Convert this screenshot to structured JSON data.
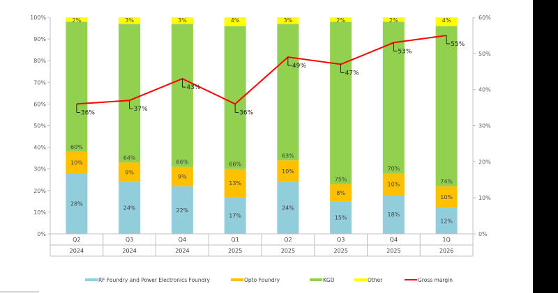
{
  "chart_data": {
    "type": "bar",
    "stacked": true,
    "categories": [
      {
        "quarter": "Q2",
        "year": "2024"
      },
      {
        "quarter": "Q3",
        "year": "2024"
      },
      {
        "quarter": "Q4",
        "year": "2024"
      },
      {
        "quarter": "Q1",
        "year": "2025"
      },
      {
        "quarter": "Q2",
        "year": "2025"
      },
      {
        "quarter": "Q3",
        "year": "2025"
      },
      {
        "quarter": "Q4",
        "year": "2025"
      },
      {
        "quarter": "1Q",
        "year": "2026"
      }
    ],
    "series": [
      {
        "name": "RF Foundry and Power Electronics Foundry",
        "color": "#92CDDC",
        "values": [
          28,
          24,
          22,
          17,
          24,
          15,
          18,
          12
        ]
      },
      {
        "name": "Opto Foundry",
        "color": "#FFC000",
        "values": [
          10,
          9,
          9,
          13,
          10,
          8,
          10,
          10
        ]
      },
      {
        "name": "KGD",
        "color": "#92D050",
        "values": [
          60,
          64,
          66,
          66,
          63,
          75,
          70,
          74
        ]
      },
      {
        "name": "Other",
        "color": "#FFFF00",
        "values": [
          2,
          3,
          3,
          4,
          3,
          2,
          2,
          4
        ]
      }
    ],
    "line": {
      "name": "Gross margin",
      "color": "#FF0000",
      "axis": "right",
      "values": [
        36,
        37,
        43,
        36,
        49,
        47,
        53,
        55
      ]
    },
    "ylim_left": [
      0,
      100
    ],
    "yticks_left": [
      "0%",
      "10%",
      "20%",
      "30%",
      "40%",
      "50%",
      "60%",
      "70%",
      "80%",
      "90%",
      "100%"
    ],
    "ylim_right": [
      0,
      60
    ],
    "yticks_right": [
      "0%",
      "10%",
      "20%",
      "30%",
      "40%",
      "50%",
      "60%"
    ],
    "grid": false,
    "legend_position": "bottom",
    "value_suffix": "%"
  }
}
